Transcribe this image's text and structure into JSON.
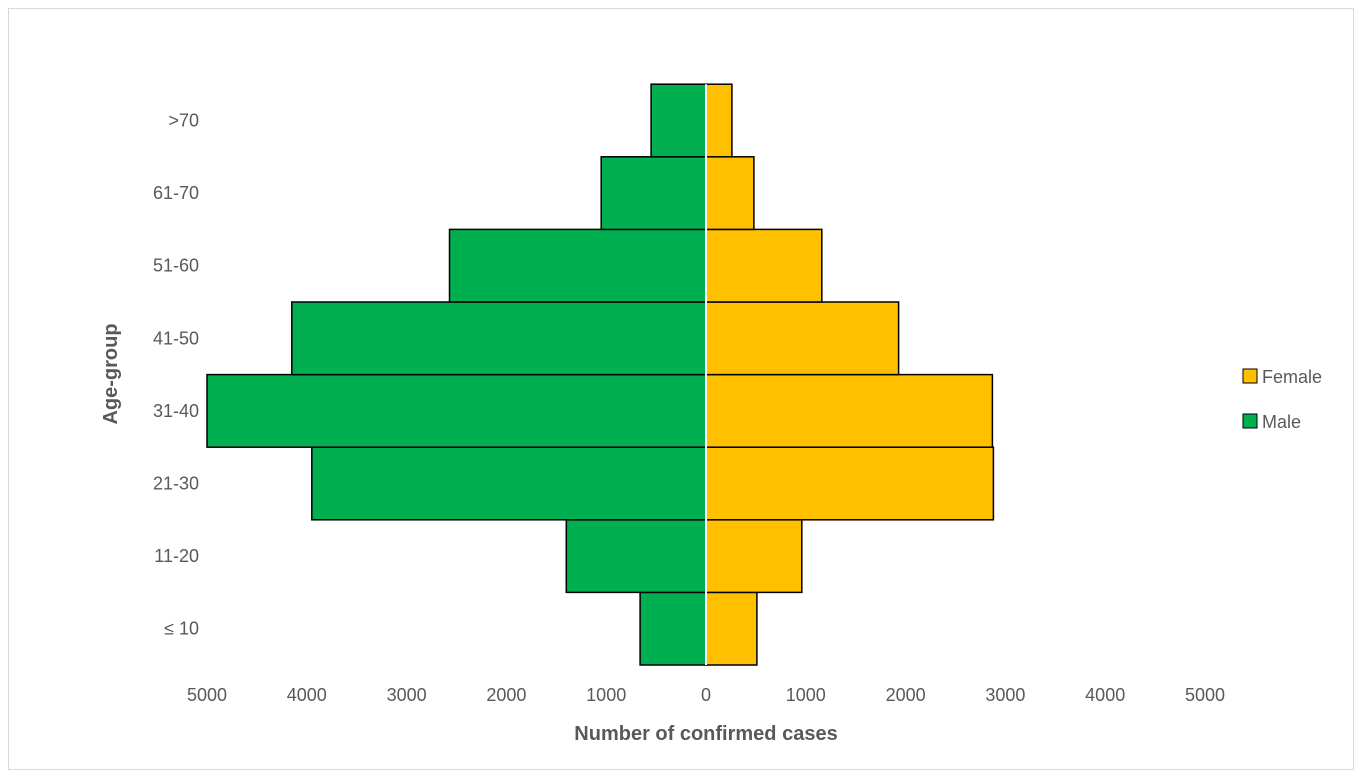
{
  "chart_data": {
    "type": "bar",
    "orientation": "horizontal",
    "layout": "population-pyramid",
    "categories": [
      "≤ 10",
      "11-20",
      "21-30",
      "31-40",
      "41-50",
      "51-60",
      "61-70",
      ">70"
    ],
    "series": [
      {
        "name": "Male",
        "color": "#00b050",
        "side": "left",
        "values": [
          660,
          1400,
          3950,
          5000,
          4150,
          2570,
          1050,
          550
        ]
      },
      {
        "name": "Female",
        "color": "#ffc000",
        "side": "right",
        "values": [
          510,
          960,
          2880,
          2870,
          1930,
          1160,
          480,
          260
        ]
      }
    ],
    "x_ticks": [
      "5000",
      "4000",
      "3000",
      "2000",
      "1000",
      "0",
      "1000",
      "2000",
      "3000",
      "4000",
      "5000"
    ],
    "xlim": [
      -5000,
      5000
    ],
    "xlabel": "Number of confirmed cases",
    "ylabel": "Age-group",
    "legend": {
      "position": "right",
      "order": [
        "Female",
        "Male"
      ]
    },
    "grid": false
  }
}
